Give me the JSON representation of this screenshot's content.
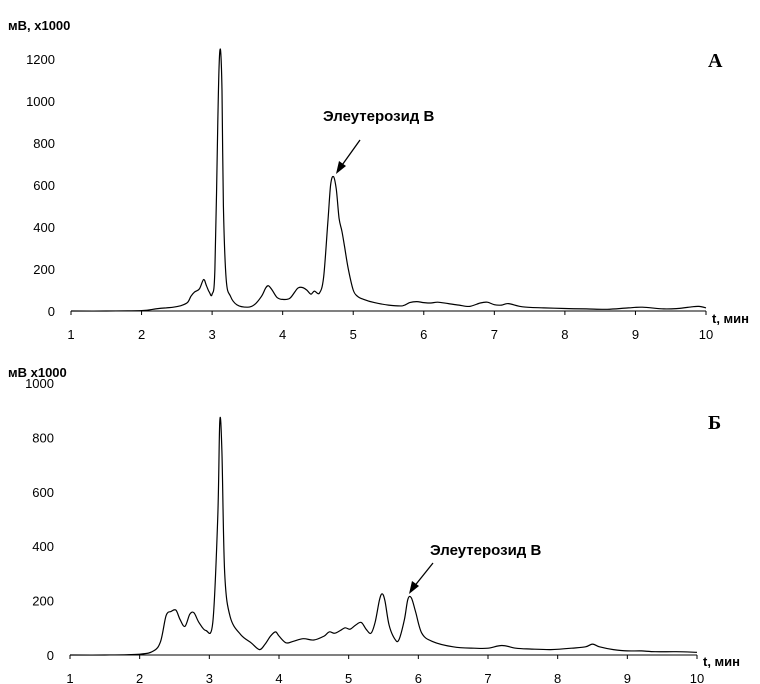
{
  "chart_data": [
    {
      "type": "line",
      "panel_label": "А",
      "ylabel": "мВ,  х1000",
      "xlabel": "t, мин",
      "xlim": [
        1,
        10
      ],
      "ylim": [
        0,
        1200
      ],
      "x_ticks": [
        "1",
        "2",
        "3",
        "4",
        "5",
        "6",
        "7",
        "8",
        "9",
        "10"
      ],
      "y_ticks": [
        "0",
        "200",
        "400",
        "600",
        "800",
        "1000",
        "1200"
      ],
      "grid": false,
      "annotation": {
        "text": "Элеутерозид В",
        "x": 4.72,
        "y": 640
      },
      "series": [
        {
          "color": "#000000",
          "x": [
            1.0,
            1.5,
            2.0,
            2.2,
            2.35,
            2.45,
            2.55,
            2.65,
            2.7,
            2.75,
            2.82,
            2.88,
            2.92,
            2.96,
            3.0,
            3.04,
            3.08,
            3.1,
            3.12,
            3.14,
            3.16,
            3.2,
            3.26,
            3.35,
            3.5,
            3.6,
            3.7,
            3.76,
            3.8,
            3.85,
            3.92,
            4.0,
            4.1,
            4.18,
            4.22,
            4.28,
            4.34,
            4.4,
            4.45,
            4.52,
            4.58,
            4.64,
            4.68,
            4.72,
            4.76,
            4.8,
            4.84,
            4.88,
            4.93,
            5.0,
            5.06,
            5.15,
            5.3,
            5.5,
            5.7,
            5.8,
            5.9,
            6.0,
            6.1,
            6.2,
            6.35,
            6.5,
            6.65,
            6.8,
            6.9,
            7.0,
            7.1,
            7.2,
            7.4,
            7.7,
            8.0,
            8.3,
            8.6,
            8.9,
            9.1,
            9.4,
            9.6,
            9.8,
            9.9,
            10.0
          ],
          "y": [
            0,
            0,
            2,
            10,
            15,
            18,
            25,
            40,
            70,
            90,
            105,
            150,
            120,
            90,
            80,
            200,
            900,
            1180,
            1240,
            1050,
            500,
            150,
            70,
            30,
            18,
            30,
            70,
            110,
            120,
            100,
            65,
            55,
            60,
            95,
            110,
            112,
            100,
            80,
            95,
            85,
            160,
            420,
            600,
            640,
            580,
            440,
            380,
            300,
            200,
            100,
            70,
            55,
            40,
            28,
            25,
            40,
            45,
            40,
            38,
            42,
            35,
            28,
            22,
            38,
            42,
            30,
            28,
            35,
            20,
            15,
            12,
            10,
            8,
            15,
            18,
            10,
            12,
            20,
            22,
            15
          ]
        }
      ]
    },
    {
      "type": "line",
      "panel_label": "Б",
      "ylabel": "мВ  х1000",
      "xlabel": "t, мин",
      "xlim": [
        1,
        10
      ],
      "ylim": [
        0,
        1000
      ],
      "x_ticks": [
        "1",
        "2",
        "3",
        "4",
        "5",
        "6",
        "7",
        "8",
        "9",
        "10"
      ],
      "y_ticks": [
        "0",
        "200",
        "400",
        "600",
        "800",
        "1000"
      ],
      "grid": false,
      "annotation": {
        "text": "Элеутерозид В",
        "x": 5.82,
        "y": 210
      },
      "series": [
        {
          "color": "#000000",
          "x": [
            1.0,
            1.5,
            2.0,
            2.2,
            2.3,
            2.38,
            2.45,
            2.52,
            2.58,
            2.65,
            2.72,
            2.78,
            2.85,
            2.95,
            3.05,
            3.12,
            3.15,
            3.18,
            3.22,
            3.3,
            3.45,
            3.6,
            3.72,
            3.8,
            3.88,
            3.95,
            4.0,
            4.1,
            4.2,
            4.35,
            4.5,
            4.65,
            4.72,
            4.8,
            4.88,
            4.95,
            5.02,
            5.1,
            5.18,
            5.25,
            5.32,
            5.38,
            5.44,
            5.48,
            5.52,
            5.58,
            5.66,
            5.72,
            5.8,
            5.85,
            5.9,
            5.96,
            6.05,
            6.2,
            6.5,
            6.8,
            7.0,
            7.2,
            7.4,
            7.6,
            7.9,
            8.2,
            8.4,
            8.5,
            8.6,
            8.8,
            9.0,
            9.2,
            9.4,
            9.7,
            10.0
          ],
          "y": [
            0,
            0,
            3,
            15,
            50,
            145,
            160,
            165,
            130,
            105,
            150,
            155,
            120,
            90,
            120,
            500,
            860,
            750,
            300,
            140,
            75,
            45,
            20,
            40,
            70,
            85,
            70,
            45,
            50,
            60,
            55,
            70,
            85,
            80,
            90,
            100,
            95,
            110,
            120,
            95,
            80,
            120,
            200,
            225,
            200,
            110,
            60,
            55,
            130,
            205,
            210,
            160,
            80,
            50,
            30,
            25,
            25,
            35,
            25,
            22,
            20,
            25,
            30,
            40,
            30,
            20,
            15,
            15,
            12,
            12,
            10
          ]
        }
      ]
    }
  ]
}
